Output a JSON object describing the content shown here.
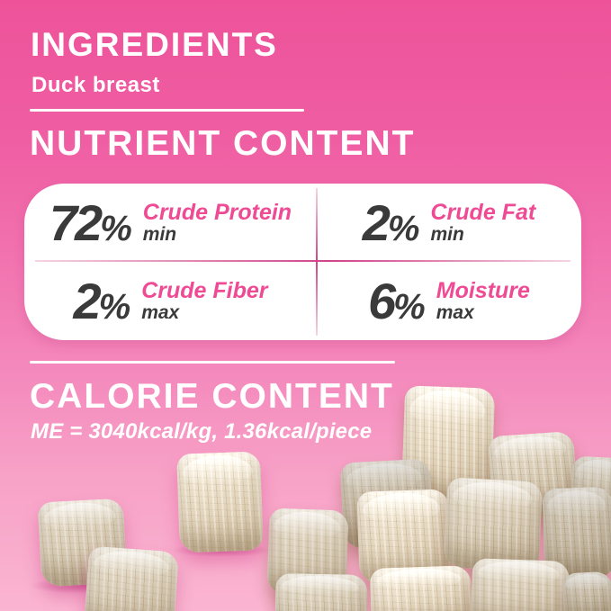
{
  "label": {
    "ingredients": {
      "heading": "INGREDIENTS",
      "value": "Duck breast"
    },
    "nutrient": {
      "heading": "NUTRIENT CONTENT",
      "items": [
        {
          "value": "72",
          "unit": "%",
          "label": "Crude Protein",
          "qualifier": "min"
        },
        {
          "value": "2",
          "unit": "%",
          "label": "Crude Fat",
          "qualifier": "min"
        },
        {
          "value": "2",
          "unit": "%",
          "label": "Crude Fiber",
          "qualifier": "max"
        },
        {
          "value": "6",
          "unit": "%",
          "label": "Moisture",
          "qualifier": "max"
        }
      ]
    },
    "calorie": {
      "heading": "CALORIE CONTENT",
      "value": "ME = 3040kcal/kg, 1.36kcal/piece"
    }
  },
  "photo": {
    "alt": "Pile of beige freeze-dried duck breast cubes on pink background"
  },
  "colors": {
    "background_top": "#ee539a",
    "background_bottom": "#fab5d1",
    "heading_text": "#ffffff",
    "accent_pink": "#ee4b94",
    "value_text": "#3a3a3a",
    "card_background": "#ffffff",
    "card_divider": "#cf4488",
    "cube_beige": "#dbcfb9"
  }
}
